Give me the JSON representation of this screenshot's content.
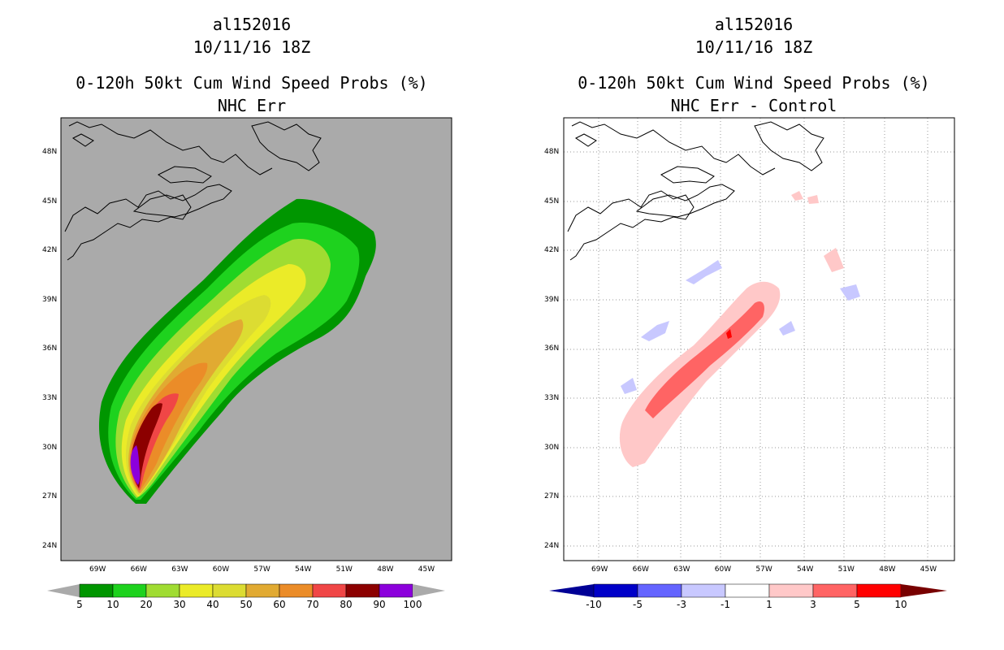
{
  "left_panel": {
    "storm_id": "al152016",
    "datetime": "10/11/16 18Z",
    "product": "0-120h 50kt Cum Wind Speed Probs (%)",
    "subtitle": "NHC Err",
    "background": "#aaaaaa",
    "colorbar": {
      "labels": [
        "5",
        "10",
        "20",
        "30",
        "40",
        "50",
        "60",
        "70",
        "80",
        "90",
        "100"
      ],
      "colors": [
        "#009600",
        "#1ed21e",
        "#a0dc32",
        "#ebeb28",
        "#dcdc32",
        "#e1aa32",
        "#eb8c28",
        "#f04646",
        "#8c0000",
        "#8c00dc"
      ],
      "end_color": "#aaaaaa"
    }
  },
  "right_panel": {
    "storm_id": "al152016",
    "datetime": "10/11/16 18Z",
    "product": "0-120h 50kt Cum Wind Speed Probs (%)",
    "subtitle": "NHC Err - Control",
    "background": "#ffffff",
    "colorbar": {
      "labels": [
        "-10",
        "-5",
        "-3",
        "-1",
        "1",
        "3",
        "5",
        "10"
      ],
      "colors": [
        "#0000c8",
        "#6464ff",
        "#c8c8ff",
        "#ffffff",
        "#ffc8c8",
        "#ff6464",
        "#ff0000"
      ],
      "low_color": "#000096",
      "high_color": "#780000"
    }
  },
  "axes": {
    "lon_labels": [
      "69W",
      "66W",
      "63W",
      "60W",
      "57W",
      "54W",
      "51W",
      "48W",
      "45W"
    ],
    "lat_labels": [
      "48N",
      "45N",
      "42N",
      "39N",
      "36N",
      "33N",
      "30N",
      "27N",
      "24N"
    ]
  }
}
